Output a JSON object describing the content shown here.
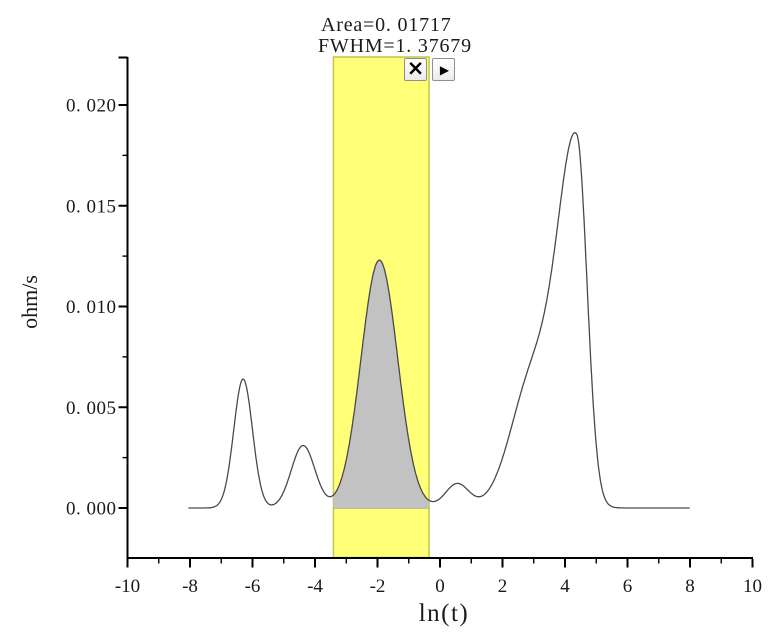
{
  "annotation": {
    "area": "Area=0. 01717",
    "fwhm": "FWHM=1. 37679"
  },
  "controls": {
    "close_glyph": "×",
    "play_glyph": "▶"
  },
  "axes": {
    "x": {
      "label": "ln(t)",
      "range": [
        -10,
        10
      ],
      "major_ticks": [
        -10,
        -8,
        -6,
        -4,
        -2,
        0,
        2,
        4,
        6,
        8,
        10
      ],
      "tick_labels": [
        "-10",
        "-8",
        "-6",
        "-4",
        "-2",
        "0",
        "2",
        "4",
        "6",
        "8",
        "10"
      ],
      "minor_ticks": [
        -9,
        -7,
        -5,
        -3,
        -1,
        1,
        3,
        5,
        7,
        9
      ]
    },
    "y": {
      "label": "ohm/s",
      "range": [
        0,
        0.02
      ],
      "major_ticks": [
        0,
        0.005,
        0.01,
        0.015,
        0.02
      ],
      "tick_labels": [
        "0. 000",
        "0. 005",
        "0. 010",
        "0. 015",
        "0. 020"
      ],
      "minor_ticks": [
        0.0025,
        0.0075,
        0.0125,
        0.0175
      ]
    }
  },
  "colors": {
    "region_fill": "#ffff78",
    "region_border": "#c3c34e",
    "peak_fill": "#c2c2c2",
    "integration_baseline": "#999999",
    "curve": "#4a4a4a",
    "axis": "#000000"
  },
  "chart_data": {
    "type": "area",
    "title": "",
    "xlabel": "ln(t)",
    "ylabel": "ohm/s",
    "xlim": [
      -10,
      10
    ],
    "ylim": [
      0,
      0.02
    ],
    "grid": false,
    "legend": false,
    "curve_model": "sum-of-gaussians",
    "curve_domain": [
      -8.05,
      8.0
    ],
    "gaussians": [
      {
        "center": -6.3,
        "height": 0.0064,
        "sigma_left": 0.3,
        "sigma_right": 0.3
      },
      {
        "center": -4.38,
        "height": 0.0031,
        "sigma_left": 0.38,
        "sigma_right": 0.38
      },
      {
        "center": -1.94,
        "height": 0.0123,
        "sigma_left": 0.585,
        "sigma_right": 0.585
      },
      {
        "center": 0.55,
        "height": 0.0012,
        "sigma_left": 0.38,
        "sigma_right": 0.38
      },
      {
        "center": 3.0,
        "height": 0.0065,
        "sigma_left": 0.72,
        "sigma_right": 0.72
      },
      {
        "center": 4.38,
        "height": 0.0175,
        "sigma_left": 0.6,
        "sigma_right": 0.33
      }
    ],
    "peaks": [
      {
        "x": -6.3,
        "y": 0.0064
      },
      {
        "x": -4.4,
        "y": 0.0031
      },
      {
        "x": -1.94,
        "y": 0.0123
      },
      {
        "x": 0.55,
        "y": 0.0012
      },
      {
        "x": 4.38,
        "y": 0.019
      }
    ],
    "integration_region": {
      "x_start": -3.41,
      "x_end": -0.35,
      "area": 0.01717,
      "fwhm": 1.37679
    }
  }
}
